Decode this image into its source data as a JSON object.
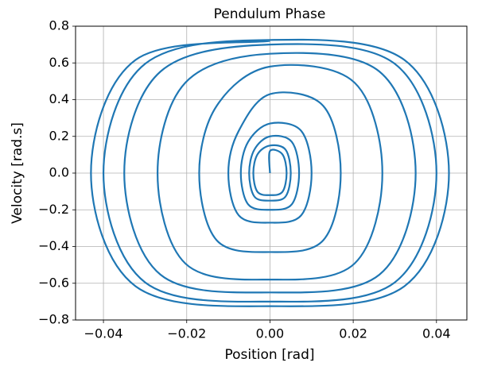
{
  "chart_data": {
    "type": "line",
    "title": "Pendulum Phase",
    "x_label": "Position [rad]",
    "y_label": "Velocity [rad.s]",
    "color": "#1f77b4",
    "grid": true,
    "xlim": [
      -0.0467,
      0.0473
    ],
    "ylim": [
      -0.8,
      0.8
    ],
    "xticks": [
      {
        "value": -0.04,
        "label": "−0.04"
      },
      {
        "value": -0.02,
        "label": "−0.02"
      },
      {
        "value": 0,
        "label": "0.00"
      },
      {
        "value": 0.02,
        "label": "0.02"
      },
      {
        "value": 0.04,
        "label": "0.04"
      }
    ],
    "yticks": [
      {
        "value": -0.8,
        "label": "−0.8"
      },
      {
        "value": -0.6,
        "label": "−0.6"
      },
      {
        "value": -0.4,
        "label": "−0.4"
      },
      {
        "value": -0.2,
        "label": "−0.2"
      },
      {
        "value": 0,
        "label": "0.0"
      },
      0.2,
      0.4,
      0.6,
      0.8
    ],
    "x": [
      0,
      0,
      0.003,
      0.004,
      0.003,
      0,
      -0.003,
      -0.004,
      -0.003,
      0,
      0.00375,
      0.005,
      0.00375,
      0,
      -0.00375,
      -0.005,
      -0.00375,
      0,
      0.00525,
      0.007,
      0.00525,
      0,
      -0.00525,
      -0.007,
      -0.00525,
      0,
      0.0075,
      0.01,
      0.0075,
      0,
      -0.0075,
      -0.01,
      -0.0075,
      0,
      0.0128,
      0.017,
      0.0128,
      0,
      -0.0128,
      -0.017,
      -0.0128,
      0,
      0.0203,
      0.027,
      0.0203,
      0,
      -0.0203,
      -0.027,
      -0.0203,
      0,
      0.0263,
      0.035,
      0.0263,
      0,
      -0.0263,
      -0.035,
      -0.0263,
      0,
      0.03,
      0.04,
      0.03,
      0,
      -0.03,
      -0.04,
      -0.03,
      0,
      0.0323,
      0.043,
      0.0323,
      0,
      -0.0323,
      -0.043,
      -0.0323,
      0
    ],
    "values": [
      0,
      0.12,
      0.102,
      0,
      -0.102,
      -0.12,
      -0.102,
      0,
      0.102,
      0.15,
      0.1275,
      0,
      -0.1275,
      -0.15,
      -0.1275,
      0,
      0.1275,
      0.2,
      0.17,
      0,
      -0.17,
      -0.2,
      -0.17,
      0,
      0.17,
      0.27,
      0.23,
      0,
      -0.23,
      -0.27,
      -0.23,
      0,
      0.23,
      0.43,
      0.366,
      0,
      -0.366,
      -0.43,
      -0.366,
      0,
      0.366,
      0.58,
      0.493,
      0,
      -0.493,
      -0.58,
      -0.493,
      0,
      0.493,
      0.65,
      0.553,
      0,
      -0.553,
      -0.65,
      -0.553,
      0,
      0.553,
      0.7,
      0.595,
      0,
      -0.595,
      -0.7,
      -0.595,
      0,
      0.595,
      0.725,
      0.616,
      0,
      -0.616,
      -0.725,
      -0.616,
      0,
      0.616,
      0.72
    ]
  }
}
